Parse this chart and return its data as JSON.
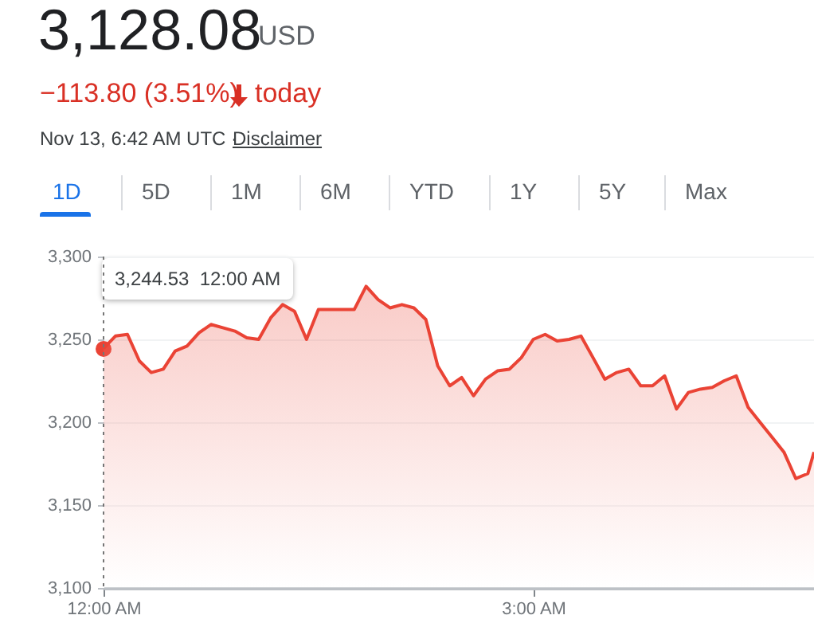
{
  "chart_data": {
    "type": "area",
    "title": "3,128.08",
    "annotations": [
      "USD",
      "−113.80 (3.51%)",
      "today",
      "Nov 13, 6:42 AM UTC · ",
      "Disclaimer",
      "1D",
      "5D",
      "1M",
      "6M",
      "YTD",
      "1Y",
      "5Y",
      "Max",
      "3,244.53  12:00 AM"
    ],
    "x": [
      0,
      0.083,
      0.167,
      0.25,
      0.333,
      0.417,
      0.5,
      0.583,
      0.667,
      0.75,
      0.833,
      0.917,
      1,
      1.083,
      1.167,
      1.25,
      1.333,
      1.417,
      1.5,
      1.75,
      1.833,
      1.917,
      2,
      2.083,
      2.167,
      2.25,
      2.333,
      2.417,
      2.5,
      2.583,
      2.667,
      2.75,
      2.833,
      2.917,
      3,
      3.083,
      3.167,
      3.25,
      3.333,
      3.417,
      3.5,
      3.583,
      3.667,
      3.75,
      3.833,
      3.917,
      4,
      4.083,
      4.167,
      4.25,
      4.333,
      4.417,
      4.5,
      4.583,
      4.667,
      4.75,
      4.833,
      4.917,
      4.96
    ],
    "series": [
      {
        "color": "#ea4335",
        "values": [
          3244.53,
          3252,
          3253,
          3237,
          3230,
          3232,
          3243,
          3246,
          3254,
          3259,
          3257,
          3255,
          3251,
          3250,
          3263,
          3271,
          3267,
          3250,
          3268,
          3268,
          3282,
          3274,
          3269,
          3271,
          3269,
          3262,
          3234,
          3222,
          3227,
          3216,
          3226,
          3231,
          3232,
          3239,
          3250,
          3253,
          3249,
          3250,
          3252,
          3239,
          3226,
          3230,
          3232,
          3222,
          3222,
          3228,
          3208,
          3218,
          3220,
          3221,
          3225,
          3228,
          3209,
          3200,
          3191,
          3182,
          3166,
          3169,
          3182
        ]
      }
    ],
    "xlim": [
      0,
      4.96
    ],
    "xticks": [
      {
        "value": 0,
        "label": "12:00 AM"
      },
      {
        "value": 3,
        "label": "3:00 AM"
      }
    ],
    "ylim": [
      3100,
      3300
    ],
    "yticks": [
      {
        "value": 3100,
        "label": "3,100"
      },
      {
        "value": 3150,
        "label": "3,150"
      },
      {
        "value": 3200,
        "label": "3,200"
      },
      {
        "value": 3250,
        "label": "3,250"
      },
      {
        "value": 3300,
        "label": "3,300"
      }
    ],
    "ref_lines": [
      {
        "axis": "x",
        "value": 0,
        "color": "#757575",
        "line_style": "dotted"
      }
    ],
    "grid": "y"
  }
}
